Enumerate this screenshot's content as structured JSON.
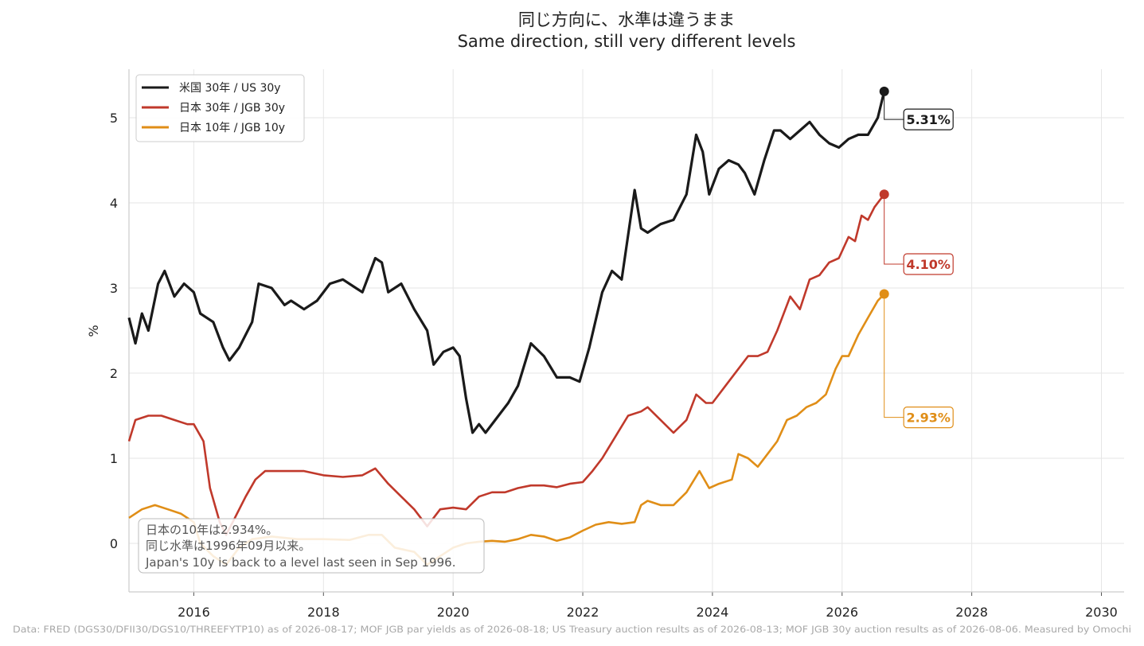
{
  "chart_data": {
    "type": "line",
    "title_ja": "同じ方向に、水準は違うまま",
    "title_en": "Same direction, still very different levels",
    "ylabel": "%",
    "xlabel": "",
    "xlim": [
      2015.0,
      2030.35
    ],
    "ylim": [
      -0.57,
      5.57
    ],
    "x_ticks": [
      2016,
      2018,
      2020,
      2022,
      2024,
      2026,
      2028,
      2030
    ],
    "y_ticks": [
      0,
      1,
      2,
      3,
      4,
      5
    ],
    "grid": true,
    "legend_position": "top-left",
    "series": [
      {
        "name": "米国 30年 / US 30y",
        "color": "#1a1a1a",
        "end_label": "5.31%",
        "points": [
          [
            2015.0,
            2.65
          ],
          [
            2015.1,
            2.35
          ],
          [
            2015.2,
            2.7
          ],
          [
            2015.3,
            2.5
          ],
          [
            2015.45,
            3.05
          ],
          [
            2015.55,
            3.2
          ],
          [
            2015.7,
            2.9
          ],
          [
            2015.85,
            3.05
          ],
          [
            2016.0,
            2.95
          ],
          [
            2016.1,
            2.7
          ],
          [
            2016.3,
            2.6
          ],
          [
            2016.45,
            2.3
          ],
          [
            2016.55,
            2.15
          ],
          [
            2016.7,
            2.3
          ],
          [
            2016.9,
            2.6
          ],
          [
            2017.0,
            3.05
          ],
          [
            2017.2,
            3.0
          ],
          [
            2017.4,
            2.8
          ],
          [
            2017.5,
            2.85
          ],
          [
            2017.7,
            2.75
          ],
          [
            2017.9,
            2.85
          ],
          [
            2018.1,
            3.05
          ],
          [
            2018.3,
            3.1
          ],
          [
            2018.5,
            3.0
          ],
          [
            2018.6,
            2.95
          ],
          [
            2018.8,
            3.35
          ],
          [
            2018.9,
            3.3
          ],
          [
            2019.0,
            2.95
          ],
          [
            2019.2,
            3.05
          ],
          [
            2019.4,
            2.75
          ],
          [
            2019.6,
            2.5
          ],
          [
            2019.7,
            2.1
          ],
          [
            2019.85,
            2.25
          ],
          [
            2020.0,
            2.3
          ],
          [
            2020.1,
            2.2
          ],
          [
            2020.2,
            1.7
          ],
          [
            2020.3,
            1.3
          ],
          [
            2020.4,
            1.4
          ],
          [
            2020.5,
            1.3
          ],
          [
            2020.65,
            1.45
          ],
          [
            2020.85,
            1.65
          ],
          [
            2021.0,
            1.85
          ],
          [
            2021.2,
            2.35
          ],
          [
            2021.4,
            2.2
          ],
          [
            2021.6,
            1.95
          ],
          [
            2021.8,
            1.95
          ],
          [
            2021.95,
            1.9
          ],
          [
            2022.1,
            2.3
          ],
          [
            2022.3,
            2.95
          ],
          [
            2022.45,
            3.2
          ],
          [
            2022.6,
            3.1
          ],
          [
            2022.8,
            4.15
          ],
          [
            2022.9,
            3.7
          ],
          [
            2023.0,
            3.65
          ],
          [
            2023.2,
            3.75
          ],
          [
            2023.4,
            3.8
          ],
          [
            2023.6,
            4.1
          ],
          [
            2023.75,
            4.8
          ],
          [
            2023.85,
            4.6
          ],
          [
            2023.95,
            4.1
          ],
          [
            2024.1,
            4.4
          ],
          [
            2024.25,
            4.5
          ],
          [
            2024.4,
            4.45
          ],
          [
            2024.5,
            4.35
          ],
          [
            2024.65,
            4.1
          ],
          [
            2024.8,
            4.5
          ],
          [
            2024.95,
            4.85
          ],
          [
            2025.05,
            4.85
          ],
          [
            2025.2,
            4.75
          ],
          [
            2025.35,
            4.85
          ],
          [
            2025.5,
            4.95
          ],
          [
            2025.65,
            4.8
          ],
          [
            2025.8,
            4.7
          ],
          [
            2025.95,
            4.65
          ],
          [
            2026.1,
            4.75
          ],
          [
            2026.25,
            4.8
          ],
          [
            2026.4,
            4.8
          ],
          [
            2026.55,
            5.0
          ],
          [
            2026.65,
            5.31
          ]
        ]
      },
      {
        "name": "日本 30年 / JGB 30y",
        "color": "#c0392b",
        "end_label": "4.10%",
        "points": [
          [
            2015.0,
            1.2
          ],
          [
            2015.1,
            1.45
          ],
          [
            2015.3,
            1.5
          ],
          [
            2015.5,
            1.5
          ],
          [
            2015.7,
            1.45
          ],
          [
            2015.9,
            1.4
          ],
          [
            2016.0,
            1.4
          ],
          [
            2016.15,
            1.2
          ],
          [
            2016.25,
            0.65
          ],
          [
            2016.4,
            0.25
          ],
          [
            2016.5,
            0.1
          ],
          [
            2016.6,
            0.25
          ],
          [
            2016.8,
            0.55
          ],
          [
            2016.95,
            0.75
          ],
          [
            2017.1,
            0.85
          ],
          [
            2017.4,
            0.85
          ],
          [
            2017.7,
            0.85
          ],
          [
            2018.0,
            0.8
          ],
          [
            2018.3,
            0.78
          ],
          [
            2018.6,
            0.8
          ],
          [
            2018.8,
            0.88
          ],
          [
            2019.0,
            0.7
          ],
          [
            2019.2,
            0.55
          ],
          [
            2019.4,
            0.4
          ],
          [
            2019.6,
            0.2
          ],
          [
            2019.8,
            0.4
          ],
          [
            2020.0,
            0.42
          ],
          [
            2020.2,
            0.4
          ],
          [
            2020.4,
            0.55
          ],
          [
            2020.6,
            0.6
          ],
          [
            2020.8,
            0.6
          ],
          [
            2021.0,
            0.65
          ],
          [
            2021.2,
            0.68
          ],
          [
            2021.4,
            0.68
          ],
          [
            2021.6,
            0.66
          ],
          [
            2021.8,
            0.7
          ],
          [
            2022.0,
            0.72
          ],
          [
            2022.15,
            0.85
          ],
          [
            2022.3,
            1.0
          ],
          [
            2022.5,
            1.25
          ],
          [
            2022.7,
            1.5
          ],
          [
            2022.9,
            1.55
          ],
          [
            2023.0,
            1.6
          ],
          [
            2023.2,
            1.45
          ],
          [
            2023.4,
            1.3
          ],
          [
            2023.6,
            1.45
          ],
          [
            2023.75,
            1.75
          ],
          [
            2023.9,
            1.65
          ],
          [
            2024.0,
            1.65
          ],
          [
            2024.2,
            1.85
          ],
          [
            2024.4,
            2.05
          ],
          [
            2024.55,
            2.2
          ],
          [
            2024.7,
            2.2
          ],
          [
            2024.85,
            2.25
          ],
          [
            2025.0,
            2.5
          ],
          [
            2025.2,
            2.9
          ],
          [
            2025.35,
            2.75
          ],
          [
            2025.5,
            3.1
          ],
          [
            2025.65,
            3.15
          ],
          [
            2025.8,
            3.3
          ],
          [
            2025.95,
            3.35
          ],
          [
            2026.1,
            3.6
          ],
          [
            2026.2,
            3.55
          ],
          [
            2026.3,
            3.85
          ],
          [
            2026.4,
            3.8
          ],
          [
            2026.5,
            3.95
          ],
          [
            2026.65,
            4.1
          ]
        ]
      },
      {
        "name": "日本 10年 / JGB 10y",
        "color": "#e08e17",
        "end_label": "2.93%",
        "points": [
          [
            2015.0,
            0.3
          ],
          [
            2015.2,
            0.4
          ],
          [
            2015.4,
            0.45
          ],
          [
            2015.6,
            0.4
          ],
          [
            2015.8,
            0.35
          ],
          [
            2016.0,
            0.25
          ],
          [
            2016.1,
            0.0
          ],
          [
            2016.3,
            -0.15
          ],
          [
            2016.5,
            -0.25
          ],
          [
            2016.7,
            -0.05
          ],
          [
            2016.9,
            0.05
          ],
          [
            2017.2,
            0.08
          ],
          [
            2017.6,
            0.05
          ],
          [
            2018.0,
            0.05
          ],
          [
            2018.4,
            0.04
          ],
          [
            2018.7,
            0.1
          ],
          [
            2018.9,
            0.1
          ],
          [
            2019.1,
            -0.05
          ],
          [
            2019.4,
            -0.1
          ],
          [
            2019.6,
            -0.25
          ],
          [
            2019.8,
            -0.15
          ],
          [
            2020.0,
            -0.05
          ],
          [
            2020.2,
            0.0
          ],
          [
            2020.4,
            0.02
          ],
          [
            2020.6,
            0.03
          ],
          [
            2020.8,
            0.02
          ],
          [
            2021.0,
            0.05
          ],
          [
            2021.2,
            0.1
          ],
          [
            2021.4,
            0.08
          ],
          [
            2021.6,
            0.03
          ],
          [
            2021.8,
            0.07
          ],
          [
            2022.0,
            0.15
          ],
          [
            2022.2,
            0.22
          ],
          [
            2022.4,
            0.25
          ],
          [
            2022.6,
            0.23
          ],
          [
            2022.8,
            0.25
          ],
          [
            2022.9,
            0.45
          ],
          [
            2023.0,
            0.5
          ],
          [
            2023.2,
            0.45
          ],
          [
            2023.4,
            0.45
          ],
          [
            2023.6,
            0.6
          ],
          [
            2023.8,
            0.85
          ],
          [
            2023.95,
            0.65
          ],
          [
            2024.1,
            0.7
          ],
          [
            2024.3,
            0.75
          ],
          [
            2024.4,
            1.05
          ],
          [
            2024.55,
            1.0
          ],
          [
            2024.7,
            0.9
          ],
          [
            2024.85,
            1.05
          ],
          [
            2025.0,
            1.2
          ],
          [
            2025.15,
            1.45
          ],
          [
            2025.3,
            1.5
          ],
          [
            2025.45,
            1.6
          ],
          [
            2025.6,
            1.65
          ],
          [
            2025.75,
            1.75
          ],
          [
            2025.9,
            2.05
          ],
          [
            2026.0,
            2.2
          ],
          [
            2026.1,
            2.2
          ],
          [
            2026.25,
            2.45
          ],
          [
            2026.4,
            2.65
          ],
          [
            2026.55,
            2.85
          ],
          [
            2026.65,
            2.93
          ]
        ]
      }
    ]
  },
  "annotation": {
    "line1": "日本の10年は2.934%。",
    "line2": "同じ水準は1996年09月以来。",
    "line3": "Japan's 10y is back to a level last seen in Sep 1996."
  },
  "source_note": "Data: FRED (DGS30/DFII30/DGS10/THREEFYTP10) as of 2026-08-17; MOF JGB par yields as of 2026-08-18; US Treasury auction results as of 2026-08-13; MOF JGB 30y auction results as of 2026-08-06. Measured by Omochi"
}
